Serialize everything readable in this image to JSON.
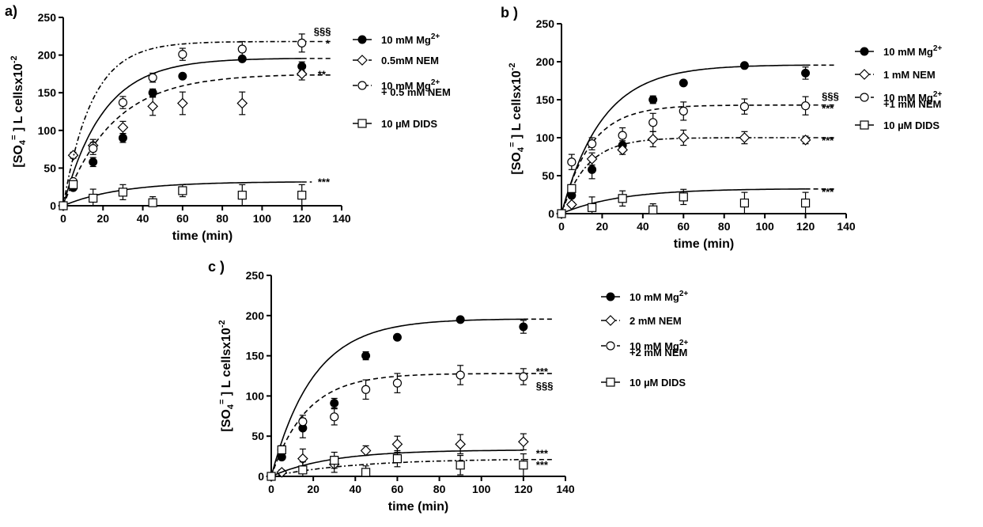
{
  "chart_data": [
    {
      "panel_label": "a)",
      "type": "scatter",
      "xlabel": "time (min)",
      "ylabel": "[SO4=] L cellsx10-2",
      "xlim": [
        0,
        140
      ],
      "ylim": [
        0,
        250
      ],
      "xticks": [
        0,
        20,
        40,
        60,
        80,
        100,
        120,
        140
      ],
      "yticks": [
        0,
        50,
        100,
        150,
        200,
        250
      ],
      "grid": false,
      "legend_position": "right",
      "annotations": [
        {
          "text": "§§§",
          "x": 126,
          "y": 232
        },
        {
          "text": "*",
          "x": 132,
          "y": 216
        },
        {
          "text": "**",
          "x": 128,
          "y": 175
        },
        {
          "text": "***",
          "x": 128,
          "y": 32
        }
      ],
      "series": [
        {
          "name": "10 mM Mg2+",
          "marker": "filled-circle",
          "line": "solid",
          "x": [
            5,
            15,
            30,
            45,
            60,
            90,
            120
          ],
          "y": [
            24,
            58,
            90,
            150,
            172,
            195,
            185
          ],
          "err": [
            3,
            6,
            6,
            5,
            3,
            3,
            6
          ],
          "fit": {
            "plateau": 196,
            "k": 0.05,
            "extend_dashed_to": 135
          }
        },
        {
          "name": "0.5mM NEM",
          "marker": "open-diamond",
          "line": "dashed",
          "x": [
            5,
            15,
            30,
            45,
            60,
            90,
            120
          ],
          "y": [
            67,
            80,
            104,
            132,
            136,
            136,
            175
          ],
          "err": [
            4,
            8,
            8,
            12,
            15,
            15,
            8
          ],
          "fit": {
            "plateau": 175,
            "k": 0.04,
            "extend_dashed_to": 135
          }
        },
        {
          "name": "10 mM Mg2+ + 0.5 mM NEM",
          "marker": "open-circle",
          "line": "dash-dot",
          "x": [
            5,
            15,
            30,
            45,
            60,
            90,
            120
          ],
          "y": [
            32,
            76,
            137,
            170,
            201,
            208,
            216
          ],
          "err": [
            3,
            8,
            8,
            6,
            8,
            10,
            12
          ],
          "fit": {
            "plateau": 218,
            "k": 0.07,
            "extend_dashed_to": 135
          }
        },
        {
          "name": "10 µM DIDS",
          "marker": "open-square",
          "line": "solid",
          "x": [
            5,
            15,
            30,
            45,
            60,
            90,
            120
          ],
          "y": [
            28,
            10,
            18,
            4,
            20,
            14,
            14
          ],
          "err": [
            5,
            12,
            10,
            8,
            8,
            14,
            14
          ],
          "fit": {
            "plateau": 32,
            "k": 0.035,
            "extend_dashed_to": 125
          }
        }
      ]
    },
    {
      "panel_label": "b )",
      "type": "scatter",
      "xlabel": "time (min)",
      "ylabel": "[SO4=] L cellsx10-2",
      "xlim": [
        0,
        140
      ],
      "ylim": [
        0,
        250
      ],
      "xticks": [
        0,
        20,
        40,
        60,
        80,
        100,
        120,
        140
      ],
      "yticks": [
        0,
        50,
        100,
        150,
        200,
        250
      ],
      "grid": false,
      "legend_position": "right",
      "annotations": [
        {
          "text": "§§§",
          "x": 128,
          "y": 155
        },
        {
          "text": "***",
          "x": 128,
          "y": 139
        },
        {
          "text": "***",
          "x": 128,
          "y": 97
        },
        {
          "text": "***",
          "x": 128,
          "y": 29
        }
      ],
      "series": [
        {
          "name": "10 mM Mg2+",
          "marker": "filled-circle",
          "line": "solid",
          "x": [
            5,
            15,
            30,
            45,
            60,
            90,
            120
          ],
          "y": [
            24,
            58,
            90,
            150,
            172,
            195,
            185
          ],
          "err": [
            3,
            12,
            6,
            5,
            3,
            3,
            8
          ],
          "fit": {
            "plateau": 196,
            "k": 0.05,
            "extend_dashed_to": 135
          }
        },
        {
          "name": "1 mM NEM",
          "marker": "open-diamond",
          "line": "dash-dot",
          "x": [
            5,
            15,
            30,
            45,
            60,
            90,
            120
          ],
          "y": [
            12,
            72,
            84,
            98,
            100,
            100,
            97
          ],
          "err": [
            3,
            8,
            6,
            10,
            10,
            8,
            5
          ],
          "fit": {
            "plateau": 100,
            "k": 0.08,
            "extend_dashed_to": 135
          }
        },
        {
          "name": "10 mM Mg2+ +1 mM NEM",
          "marker": "open-circle",
          "line": "dashed",
          "x": [
            5,
            15,
            30,
            45,
            60,
            90,
            120
          ],
          "y": [
            68,
            92,
            103,
            120,
            135,
            141,
            142
          ],
          "err": [
            10,
            8,
            10,
            12,
            12,
            10,
            12
          ],
          "fit": {
            "plateau": 143,
            "k": 0.07,
            "extend_dashed_to": 135
          }
        },
        {
          "name": "10 µM DIDS",
          "marker": "open-square",
          "line": "solid",
          "x": [
            5,
            15,
            30,
            45,
            60,
            90,
            120
          ],
          "y": [
            33,
            8,
            20,
            5,
            22,
            14,
            14
          ],
          "err": [
            5,
            14,
            10,
            8,
            10,
            14,
            14
          ],
          "fit": {
            "plateau": 33,
            "k": 0.035,
            "extend_dashed_to": 135
          }
        }
      ]
    },
    {
      "panel_label": "c )",
      "type": "scatter",
      "xlabel": "time (min)",
      "ylabel": "[SO4=] L cellsx10-2",
      "xlim": [
        0,
        140
      ],
      "ylim": [
        0,
        250
      ],
      "xticks": [
        0,
        20,
        40,
        60,
        80,
        100,
        120,
        140
      ],
      "yticks": [
        0,
        50,
        100,
        150,
        200,
        250
      ],
      "grid": false,
      "legend_position": "right",
      "annotations": [
        {
          "text": "***",
          "x": 126,
          "y": 131
        },
        {
          "text": "§§§",
          "x": 126,
          "y": 113
        },
        {
          "text": "***",
          "x": 126,
          "y": 29
        },
        {
          "text": "***",
          "x": 126,
          "y": 15
        }
      ],
      "series": [
        {
          "name": "10 mM Mg2+",
          "marker": "filled-circle",
          "line": "solid",
          "x": [
            5,
            15,
            30,
            45,
            60,
            90,
            120
          ],
          "y": [
            24,
            60,
            91,
            150,
            173,
            195,
            186
          ],
          "err": [
            3,
            12,
            6,
            5,
            3,
            3,
            8
          ],
          "fit": {
            "plateau": 196,
            "k": 0.05,
            "extend_dashed_to": 135
          }
        },
        {
          "name": "2 mM NEM",
          "marker": "open-diamond",
          "line": "dash-dot",
          "x": [
            5,
            15,
            30,
            45,
            60,
            90,
            120
          ],
          "y": [
            5,
            22,
            15,
            32,
            40,
            40,
            43
          ],
          "err": [
            3,
            12,
            10,
            6,
            10,
            12,
            10
          ],
          "fit": {
            "plateau": 22,
            "k": 0.025,
            "extend_dashed_to": 135
          }
        },
        {
          "name": "10 mM Mg2+ +2 mM NEM",
          "marker": "open-circle",
          "line": "dashed",
          "x": [
            5,
            15,
            30,
            45,
            60,
            90,
            120
          ],
          "y": [
            33,
            68,
            74,
            108,
            116,
            126,
            124
          ],
          "err": [
            5,
            8,
            10,
            12,
            12,
            12,
            10
          ],
          "fit": {
            "plateau": 128,
            "k": 0.06,
            "extend_dashed_to": 135
          }
        },
        {
          "name": "10 µM DIDS",
          "marker": "open-square",
          "line": "solid",
          "x": [
            5,
            15,
            30,
            45,
            60,
            90,
            120
          ],
          "y": [
            33,
            8,
            20,
            5,
            22,
            14,
            14
          ],
          "err": [
            5,
            10,
            10,
            8,
            10,
            12,
            14
          ],
          "fit": {
            "plateau": 33,
            "k": 0.035,
            "extend_dashed_to": 120
          }
        }
      ]
    }
  ]
}
